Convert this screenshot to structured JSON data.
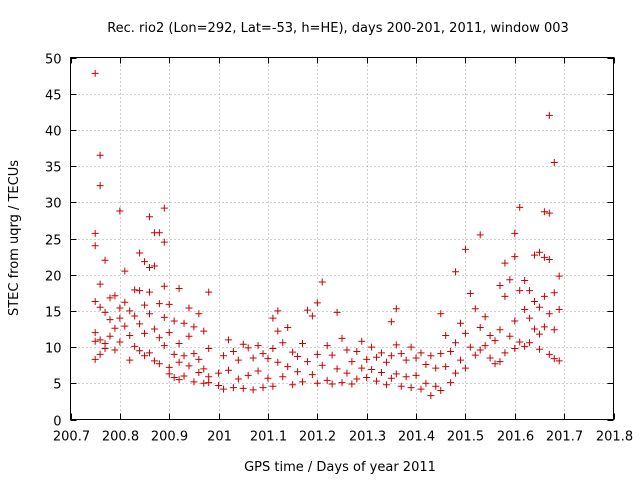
{
  "chart_data": {
    "type": "scatter",
    "title": "Rec. rio2 (Lon=292, Lat=-53, h=HE), days 200-201, 2011, window 003",
    "xlabel": "GPS time / Days of year 2011",
    "ylabel": "STEC from uqrg / TECUs",
    "xlim": [
      200.7,
      201.8
    ],
    "ylim": [
      0,
      50
    ],
    "xticks": [
      200.7,
      200.8,
      200.9,
      201,
      201.1,
      201.2,
      201.3,
      201.4,
      201.5,
      201.6,
      201.7,
      201.8
    ],
    "xtick_labels": [
      "200.7",
      "200.8",
      "200.9",
      "201",
      "201.1",
      "201.2",
      "201.3",
      "201.4",
      "201.5",
      "201.6",
      "201.7",
      "201.8"
    ],
    "yticks": [
      0,
      5,
      10,
      15,
      20,
      25,
      30,
      35,
      40,
      45,
      50
    ],
    "ytick_labels": [
      "0",
      "5",
      "10",
      "15",
      "20",
      "25",
      "30",
      "35",
      "40",
      "45",
      "50"
    ],
    "grid": true,
    "marker": "+",
    "color": "#cc0000",
    "series": [
      {
        "name": "STEC",
        "points": [
          [
            200.75,
            47.8
          ],
          [
            200.76,
            36.5
          ],
          [
            200.76,
            32.3
          ],
          [
            200.75,
            25.7
          ],
          [
            200.75,
            24.0
          ],
          [
            200.77,
            22.0
          ],
          [
            200.76,
            18.7
          ],
          [
            200.75,
            16.3
          ],
          [
            200.76,
            15.5
          ],
          [
            200.77,
            14.8
          ],
          [
            200.75,
            12.0
          ],
          [
            200.76,
            11.0
          ],
          [
            200.75,
            10.8
          ],
          [
            200.77,
            10.5
          ],
          [
            200.75,
            8.3
          ],
          [
            200.76,
            9.0
          ],
          [
            200.77,
            9.8
          ],
          [
            200.78,
            16.8
          ],
          [
            200.78,
            13.8
          ],
          [
            200.78,
            11.5
          ],
          [
            200.79,
            17.1
          ],
          [
            200.79,
            12.6
          ],
          [
            200.79,
            9.6
          ],
          [
            200.8,
            28.8
          ],
          [
            200.8,
            15.4
          ],
          [
            200.8,
            14.0
          ],
          [
            200.8,
            10.7
          ],
          [
            200.81,
            20.5
          ],
          [
            200.81,
            16.2
          ],
          [
            200.81,
            12.9
          ],
          [
            200.82,
            15.0
          ],
          [
            200.82,
            11.6
          ],
          [
            200.82,
            8.2
          ],
          [
            200.83,
            17.9
          ],
          [
            200.83,
            14.3
          ],
          [
            200.83,
            10.1
          ],
          [
            200.84,
            23.0
          ],
          [
            200.84,
            17.8
          ],
          [
            200.84,
            13.2
          ],
          [
            200.84,
            9.5
          ],
          [
            200.85,
            21.8
          ],
          [
            200.85,
            15.8
          ],
          [
            200.85,
            11.9
          ],
          [
            200.85,
            8.8
          ],
          [
            200.86,
            28.0
          ],
          [
            200.86,
            21.0
          ],
          [
            200.86,
            17.6
          ],
          [
            200.86,
            14.6
          ],
          [
            200.86,
            9.2
          ],
          [
            200.87,
            25.8
          ],
          [
            200.87,
            21.2
          ],
          [
            200.87,
            12.5
          ],
          [
            200.87,
            8.1
          ],
          [
            200.88,
            25.8
          ],
          [
            200.88,
            16.0
          ],
          [
            200.88,
            11.3
          ],
          [
            200.88,
            7.7
          ],
          [
            200.89,
            29.2
          ],
          [
            200.89,
            24.5
          ],
          [
            200.89,
            18.4
          ],
          [
            200.89,
            14.1
          ],
          [
            200.89,
            10.2
          ],
          [
            200.9,
            15.9
          ],
          [
            200.9,
            12.0
          ],
          [
            200.9,
            7.2
          ],
          [
            200.9,
            6.3
          ],
          [
            200.91,
            13.6
          ],
          [
            200.91,
            9.0
          ],
          [
            200.91,
            5.8
          ],
          [
            200.92,
            18.1
          ],
          [
            200.92,
            10.5
          ],
          [
            200.92,
            7.9
          ],
          [
            200.92,
            5.5
          ],
          [
            200.93,
            13.3
          ],
          [
            200.93,
            8.8
          ],
          [
            200.93,
            6.0
          ],
          [
            200.94,
            15.4
          ],
          [
            200.94,
            11.5
          ],
          [
            200.94,
            7.4
          ],
          [
            200.95,
            12.8
          ],
          [
            200.95,
            9.1
          ],
          [
            200.95,
            5.2
          ],
          [
            200.96,
            14.6
          ],
          [
            200.96,
            8.3
          ],
          [
            200.96,
            6.5
          ],
          [
            200.97,
            12.2
          ],
          [
            200.97,
            7.0
          ],
          [
            200.97,
            5.0
          ],
          [
            200.98,
            17.6
          ],
          [
            200.98,
            9.8
          ],
          [
            200.98,
            5.9
          ],
          [
            200.98,
            5.1
          ],
          [
            201.0,
            6.4
          ],
          [
            201.0,
            4.7
          ],
          [
            201.01,
            8.8
          ],
          [
            201.01,
            4.2
          ],
          [
            201.02,
            11.0
          ],
          [
            201.02,
            6.8
          ],
          [
            201.03,
            9.4
          ],
          [
            201.03,
            4.4
          ],
          [
            201.04,
            8.2
          ],
          [
            201.04,
            5.6
          ],
          [
            201.05,
            10.4
          ],
          [
            201.05,
            4.3
          ],
          [
            201.06,
            9.9
          ],
          [
            201.06,
            6.1
          ],
          [
            201.07,
            8.5
          ],
          [
            201.07,
            4.1
          ],
          [
            201.08,
            10.2
          ],
          [
            201.08,
            6.7
          ],
          [
            201.09,
            9.1
          ],
          [
            201.09,
            4.4
          ],
          [
            201.1,
            8.4
          ],
          [
            201.1,
            5.7
          ],
          [
            201.11,
            14.0
          ],
          [
            201.11,
            9.8
          ],
          [
            201.11,
            4.6
          ],
          [
            201.12,
            15.0
          ],
          [
            201.12,
            12.2
          ],
          [
            201.12,
            7.9
          ],
          [
            201.13,
            10.6
          ],
          [
            201.13,
            5.9
          ],
          [
            201.14,
            12.7
          ],
          [
            201.14,
            7.3
          ],
          [
            201.15,
            9.3
          ],
          [
            201.15,
            4.8
          ],
          [
            201.16,
            8.7
          ],
          [
            201.16,
            6.6
          ],
          [
            201.17,
            10.5
          ],
          [
            201.17,
            5.2
          ],
          [
            201.18,
            15.1
          ],
          [
            201.18,
            8.0
          ],
          [
            201.19,
            14.3
          ],
          [
            201.19,
            6.2
          ],
          [
            201.2,
            16.1
          ],
          [
            201.2,
            9.0
          ],
          [
            201.2,
            5.0
          ],
          [
            201.21,
            19.0
          ],
          [
            201.21,
            7.5
          ],
          [
            201.22,
            10.2
          ],
          [
            201.22,
            5.4
          ],
          [
            201.23,
            8.9
          ],
          [
            201.23,
            4.9
          ],
          [
            201.24,
            14.8
          ],
          [
            201.24,
            7.0
          ],
          [
            201.25,
            11.2
          ],
          [
            201.25,
            5.1
          ],
          [
            201.26,
            9.6
          ],
          [
            201.26,
            6.4
          ],
          [
            201.27,
            8.0
          ],
          [
            201.27,
            4.9
          ],
          [
            201.28,
            9.4
          ],
          [
            201.28,
            5.6
          ],
          [
            201.29,
            10.8
          ],
          [
            201.29,
            7.1
          ],
          [
            201.3,
            8.3
          ],
          [
            201.3,
            5.8
          ],
          [
            201.31,
            10.0
          ],
          [
            201.31,
            6.9
          ],
          [
            201.32,
            8.6
          ],
          [
            201.32,
            5.3
          ],
          [
            201.33,
            9.2
          ],
          [
            201.33,
            6.5
          ],
          [
            201.34,
            7.9
          ],
          [
            201.34,
            4.8
          ],
          [
            201.35,
            13.5
          ],
          [
            201.35,
            8.8
          ],
          [
            201.35,
            5.7
          ],
          [
            201.36,
            15.3
          ],
          [
            201.36,
            10.3
          ],
          [
            201.36,
            6.3
          ],
          [
            201.37,
            9.1
          ],
          [
            201.37,
            4.6
          ],
          [
            201.38,
            8.2
          ],
          [
            201.38,
            5.9
          ],
          [
            201.39,
            10.0
          ],
          [
            201.39,
            4.4
          ],
          [
            201.4,
            8.5
          ],
          [
            201.4,
            6.1
          ],
          [
            201.41,
            9.2
          ],
          [
            201.41,
            4.2
          ],
          [
            201.42,
            7.6
          ],
          [
            201.42,
            5.0
          ],
          [
            201.43,
            8.8
          ],
          [
            201.43,
            3.3
          ],
          [
            201.44,
            7.1
          ],
          [
            201.44,
            4.6
          ],
          [
            201.45,
            14.6
          ],
          [
            201.45,
            9.1
          ],
          [
            201.45,
            4.0
          ],
          [
            201.46,
            11.6
          ],
          [
            201.46,
            7.3
          ],
          [
            201.47,
            9.4
          ],
          [
            201.47,
            5.1
          ],
          [
            201.48,
            20.4
          ],
          [
            201.48,
            10.6
          ],
          [
            201.48,
            6.4
          ],
          [
            201.49,
            13.3
          ],
          [
            201.49,
            8.2
          ],
          [
            201.5,
            23.5
          ],
          [
            201.5,
            11.9
          ],
          [
            201.5,
            7.1
          ],
          [
            201.51,
            17.4
          ],
          [
            201.51,
            10.0
          ],
          [
            201.52,
            15.3
          ],
          [
            201.52,
            8.9
          ],
          [
            201.53,
            25.5
          ],
          [
            201.53,
            12.7
          ],
          [
            201.53,
            9.6
          ],
          [
            201.54,
            14.2
          ],
          [
            201.54,
            10.2
          ],
          [
            201.55,
            11.6
          ],
          [
            201.55,
            8.5
          ],
          [
            201.56,
            10.9
          ],
          [
            201.56,
            7.7
          ],
          [
            201.57,
            18.5
          ],
          [
            201.57,
            12.4
          ],
          [
            201.57,
            8.0
          ],
          [
            201.58,
            21.6
          ],
          [
            201.58,
            17.0
          ],
          [
            201.58,
            9.2
          ],
          [
            201.59,
            19.3
          ],
          [
            201.59,
            11.5
          ],
          [
            201.6,
            25.7
          ],
          [
            201.6,
            22.5
          ],
          [
            201.6,
            13.6
          ],
          [
            201.6,
            9.8
          ],
          [
            201.61,
            29.3
          ],
          [
            201.61,
            17.8
          ],
          [
            201.61,
            10.7
          ],
          [
            201.62,
            19.2
          ],
          [
            201.62,
            15.2
          ],
          [
            201.62,
            10.1
          ],
          [
            201.63,
            17.8
          ],
          [
            201.63,
            14.0
          ],
          [
            201.63,
            10.6
          ],
          [
            201.64,
            22.7
          ],
          [
            201.64,
            16.3
          ],
          [
            201.64,
            12.5
          ],
          [
            201.65,
            23.1
          ],
          [
            201.65,
            15.5
          ],
          [
            201.65,
            11.8
          ],
          [
            201.65,
            9.7
          ],
          [
            201.66,
            28.7
          ],
          [
            201.66,
            22.4
          ],
          [
            201.66,
            17.0
          ],
          [
            201.66,
            12.8
          ],
          [
            201.67,
            42.0
          ],
          [
            201.67,
            28.5
          ],
          [
            201.67,
            22.1
          ],
          [
            201.67,
            14.6
          ],
          [
            201.67,
            9.0
          ],
          [
            201.68,
            35.5
          ],
          [
            201.68,
            17.5
          ],
          [
            201.68,
            12.4
          ],
          [
            201.68,
            8.4
          ],
          [
            201.69,
            19.8
          ],
          [
            201.69,
            15.2
          ],
          [
            201.69,
            8.1
          ]
        ]
      }
    ]
  }
}
